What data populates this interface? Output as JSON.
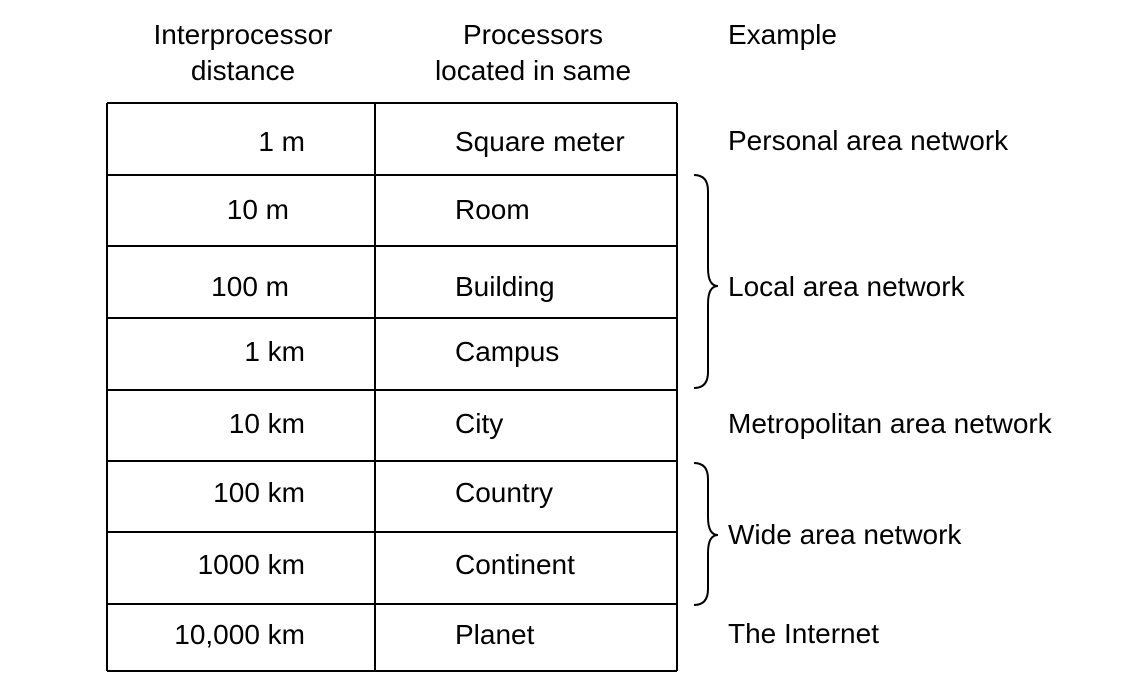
{
  "headers": {
    "distance": [
      "Interprocessor",
      "distance"
    ],
    "processors": [
      "Processors",
      "located in same"
    ],
    "example": "Example"
  },
  "rows": [
    {
      "distance": "1 m",
      "location": "Square meter"
    },
    {
      "distance": "10 m",
      "location": "Room"
    },
    {
      "distance": "100 m",
      "location": "Building"
    },
    {
      "distance": "1 km",
      "location": "Campus"
    },
    {
      "distance": "10 km",
      "location": "City"
    },
    {
      "distance": "100 km",
      "location": "Country"
    },
    {
      "distance": "1000 km",
      "location": "Continent"
    },
    {
      "distance": "10,000 km",
      "location": "Planet"
    }
  ],
  "examples": [
    {
      "label": "Personal area network"
    },
    {
      "label": "Local area network"
    },
    {
      "label": "Metropolitan area network"
    },
    {
      "label": "Wide area network"
    },
    {
      "label": "The Internet"
    }
  ]
}
